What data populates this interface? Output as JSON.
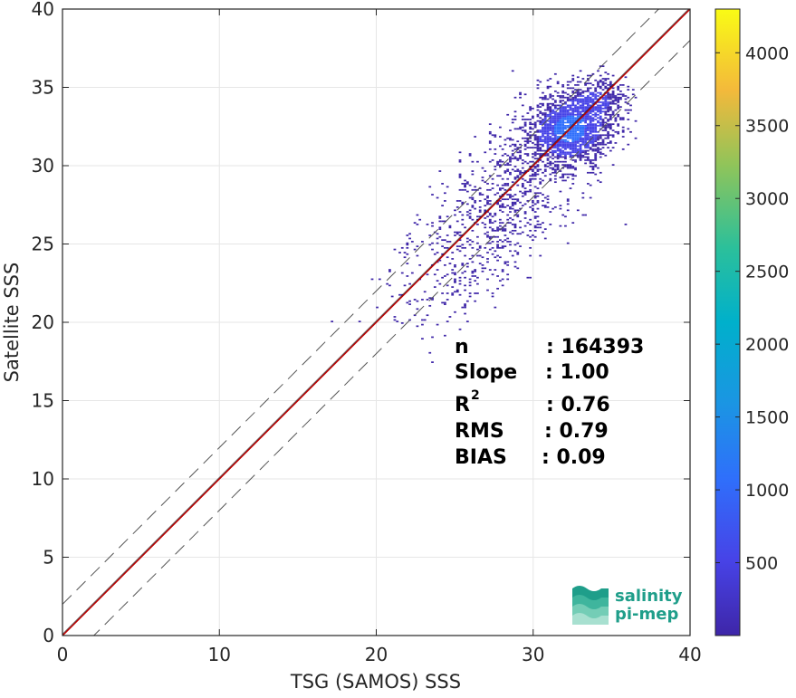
{
  "chart_data": {
    "type": "scatter",
    "subtype": "density-scatter",
    "title": "",
    "xlabel": "TSG (SAMOS) SSS",
    "ylabel": "Satellite SSS",
    "xlim": [
      0,
      40
    ],
    "ylim": [
      0,
      40
    ],
    "xticks": [
      0,
      10,
      20,
      30,
      40
    ],
    "yticks": [
      0,
      5,
      10,
      15,
      20,
      25,
      30,
      35,
      40
    ],
    "grid": true,
    "reference_lines": [
      {
        "kind": "one-to-one",
        "slope": 1,
        "intercept": 0,
        "style": "solid",
        "color": "#c00000"
      },
      {
        "kind": "offset",
        "slope": 1,
        "intercept": 2,
        "style": "dashed",
        "color": "#555555"
      },
      {
        "kind": "offset",
        "slope": 1,
        "intercept": -2,
        "style": "dashed",
        "color": "#555555"
      }
    ],
    "fit_line": {
      "slope": 1.0,
      "intercept": 0.09,
      "color": "#111111"
    },
    "density_clusters": [
      {
        "cx": 32.3,
        "cy": 32.3,
        "sx": 1.8,
        "sy": 1.5,
        "weight": 0.55
      },
      {
        "cx": 34.2,
        "cy": 34.3,
        "sx": 1.1,
        "sy": 0.8,
        "weight": 0.25
      },
      {
        "cx": 29.0,
        "cy": 28.0,
        "sx": 3.0,
        "sy": 3.2,
        "weight": 0.12
      },
      {
        "cx": 26.5,
        "cy": 22.5,
        "sx": 3.0,
        "sy": 2.5,
        "weight": 0.08
      }
    ],
    "colorbar": {
      "ticks": [
        500,
        1000,
        1500,
        2000,
        2500,
        3000,
        3500,
        4000
      ],
      "min": 0,
      "max": 4300,
      "colormap": "parula"
    },
    "stats": [
      {
        "label": "n",
        "value": ": 164393"
      },
      {
        "label": "Slope",
        "value": ": 1.00"
      },
      {
        "label": "R",
        "superscript": "2",
        "value": ": 0.76"
      },
      {
        "label": "RMS",
        "value": ": 0.79"
      },
      {
        "label": "BIAS",
        "value": ": 0.09"
      }
    ]
  },
  "logo": {
    "line1": "salinity",
    "line2": "pi-mep"
  }
}
